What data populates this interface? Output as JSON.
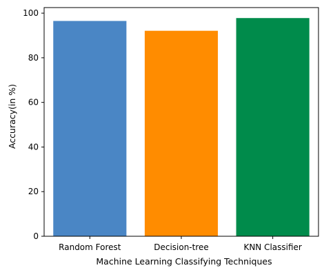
{
  "chart_data": {
    "type": "bar",
    "title": "",
    "xlabel": "Machine Learning Classifying Techniques",
    "ylabel": "Accuracy(in %)",
    "categories": [
      "Random Forest",
      "Decision-tree",
      "KNN Classifier"
    ],
    "values": [
      96.5,
      92.1,
      97.8
    ],
    "colors": [
      "#4a86c5",
      "#ff8c00",
      "#008b4b"
    ],
    "ylim": [
      0,
      102.5
    ],
    "yticks": [
      0,
      20,
      40,
      60,
      80,
      100
    ],
    "grid": false,
    "legend": "none"
  }
}
